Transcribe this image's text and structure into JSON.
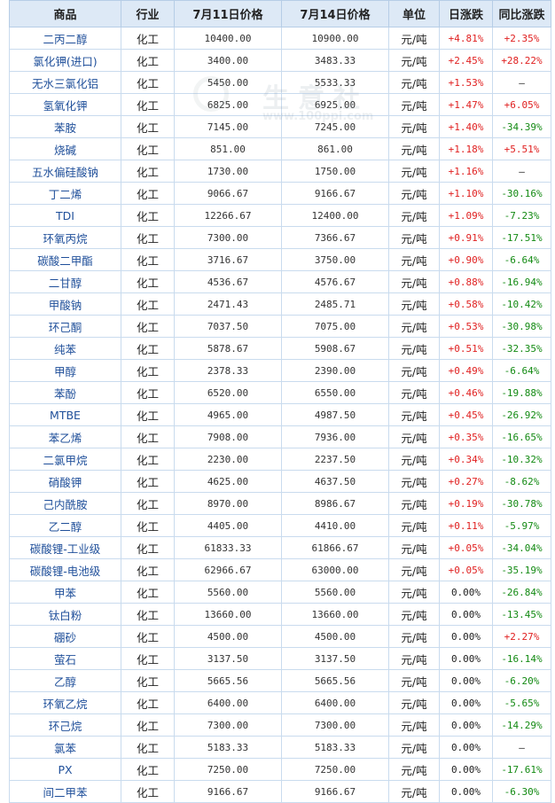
{
  "table": {
    "headers": [
      "商品",
      "行业",
      "7月11日价格",
      "7月14日价格",
      "单位",
      "日涨跌",
      "同比涨跌"
    ],
    "rows": [
      {
        "name": "二丙二醇",
        "industry": "化工",
        "p1": "10400.00",
        "p2": "10900.00",
        "unit": "元/吨",
        "daily": "+4.81%",
        "yoy": "+2.35%"
      },
      {
        "name": "氯化钾(进口)",
        "industry": "化工",
        "p1": "3400.00",
        "p2": "3483.33",
        "unit": "元/吨",
        "daily": "+2.45%",
        "yoy": "+28.22%"
      },
      {
        "name": "无水三氯化铝",
        "industry": "化工",
        "p1": "5450.00",
        "p2": "5533.33",
        "unit": "元/吨",
        "daily": "+1.53%",
        "yoy": "—"
      },
      {
        "name": "氢氧化钾",
        "industry": "化工",
        "p1": "6825.00",
        "p2": "6925.00",
        "unit": "元/吨",
        "daily": "+1.47%",
        "yoy": "+6.05%"
      },
      {
        "name": "苯胺",
        "industry": "化工",
        "p1": "7145.00",
        "p2": "7245.00",
        "unit": "元/吨",
        "daily": "+1.40%",
        "yoy": "-34.39%"
      },
      {
        "name": "烧碱",
        "industry": "化工",
        "p1": "851.00",
        "p2": "861.00",
        "unit": "元/吨",
        "daily": "+1.18%",
        "yoy": "+5.51%"
      },
      {
        "name": "五水偏硅酸钠",
        "industry": "化工",
        "p1": "1730.00",
        "p2": "1750.00",
        "unit": "元/吨",
        "daily": "+1.16%",
        "yoy": "—"
      },
      {
        "name": "丁二烯",
        "industry": "化工",
        "p1": "9066.67",
        "p2": "9166.67",
        "unit": "元/吨",
        "daily": "+1.10%",
        "yoy": "-30.16%"
      },
      {
        "name": "TDI",
        "industry": "化工",
        "p1": "12266.67",
        "p2": "12400.00",
        "unit": "元/吨",
        "daily": "+1.09%",
        "yoy": "-7.23%"
      },
      {
        "name": "环氧丙烷",
        "industry": "化工",
        "p1": "7300.00",
        "p2": "7366.67",
        "unit": "元/吨",
        "daily": "+0.91%",
        "yoy": "-17.51%"
      },
      {
        "name": "碳酸二甲酯",
        "industry": "化工",
        "p1": "3716.67",
        "p2": "3750.00",
        "unit": "元/吨",
        "daily": "+0.90%",
        "yoy": "-6.64%"
      },
      {
        "name": "二甘醇",
        "industry": "化工",
        "p1": "4536.67",
        "p2": "4576.67",
        "unit": "元/吨",
        "daily": "+0.88%",
        "yoy": "-16.94%"
      },
      {
        "name": "甲酸钠",
        "industry": "化工",
        "p1": "2471.43",
        "p2": "2485.71",
        "unit": "元/吨",
        "daily": "+0.58%",
        "yoy": "-10.42%"
      },
      {
        "name": "环己酮",
        "industry": "化工",
        "p1": "7037.50",
        "p2": "7075.00",
        "unit": "元/吨",
        "daily": "+0.53%",
        "yoy": "-30.98%"
      },
      {
        "name": "纯苯",
        "industry": "化工",
        "p1": "5878.67",
        "p2": "5908.67",
        "unit": "元/吨",
        "daily": "+0.51%",
        "yoy": "-32.35%"
      },
      {
        "name": "甲醇",
        "industry": "化工",
        "p1": "2378.33",
        "p2": "2390.00",
        "unit": "元/吨",
        "daily": "+0.49%",
        "yoy": "-6.64%"
      },
      {
        "name": "苯酚",
        "industry": "化工",
        "p1": "6520.00",
        "p2": "6550.00",
        "unit": "元/吨",
        "daily": "+0.46%",
        "yoy": "-19.88%"
      },
      {
        "name": "MTBE",
        "industry": "化工",
        "p1": "4965.00",
        "p2": "4987.50",
        "unit": "元/吨",
        "daily": "+0.45%",
        "yoy": "-26.92%"
      },
      {
        "name": "苯乙烯",
        "industry": "化工",
        "p1": "7908.00",
        "p2": "7936.00",
        "unit": "元/吨",
        "daily": "+0.35%",
        "yoy": "-16.65%"
      },
      {
        "name": "二氯甲烷",
        "industry": "化工",
        "p1": "2230.00",
        "p2": "2237.50",
        "unit": "元/吨",
        "daily": "+0.34%",
        "yoy": "-10.32%"
      },
      {
        "name": "硝酸钾",
        "industry": "化工",
        "p1": "4625.00",
        "p2": "4637.50",
        "unit": "元/吨",
        "daily": "+0.27%",
        "yoy": "-8.62%"
      },
      {
        "name": "己内酰胺",
        "industry": "化工",
        "p1": "8970.00",
        "p2": "8986.67",
        "unit": "元/吨",
        "daily": "+0.19%",
        "yoy": "-30.78%"
      },
      {
        "name": "乙二醇",
        "industry": "化工",
        "p1": "4405.00",
        "p2": "4410.00",
        "unit": "元/吨",
        "daily": "+0.11%",
        "yoy": "-5.97%"
      },
      {
        "name": "碳酸锂-工业级",
        "industry": "化工",
        "p1": "61833.33",
        "p2": "61866.67",
        "unit": "元/吨",
        "daily": "+0.05%",
        "yoy": "-34.04%"
      },
      {
        "name": "碳酸锂-电池级",
        "industry": "化工",
        "p1": "62966.67",
        "p2": "63000.00",
        "unit": "元/吨",
        "daily": "+0.05%",
        "yoy": "-35.19%"
      },
      {
        "name": "甲苯",
        "industry": "化工",
        "p1": "5560.00",
        "p2": "5560.00",
        "unit": "元/吨",
        "daily": "0.00%",
        "yoy": "-26.84%"
      },
      {
        "name": "钛白粉",
        "industry": "化工",
        "p1": "13660.00",
        "p2": "13660.00",
        "unit": "元/吨",
        "daily": "0.00%",
        "yoy": "-13.45%"
      },
      {
        "name": "硼砂",
        "industry": "化工",
        "p1": "4500.00",
        "p2": "4500.00",
        "unit": "元/吨",
        "daily": "0.00%",
        "yoy": "+2.27%"
      },
      {
        "name": "萤石",
        "industry": "化工",
        "p1": "3137.50",
        "p2": "3137.50",
        "unit": "元/吨",
        "daily": "0.00%",
        "yoy": "-16.14%"
      },
      {
        "name": "乙醇",
        "industry": "化工",
        "p1": "5665.56",
        "p2": "5665.56",
        "unit": "元/吨",
        "daily": "0.00%",
        "yoy": "-6.20%"
      },
      {
        "name": "环氧乙烷",
        "industry": "化工",
        "p1": "6400.00",
        "p2": "6400.00",
        "unit": "元/吨",
        "daily": "0.00%",
        "yoy": "-5.65%"
      },
      {
        "name": "环己烷",
        "industry": "化工",
        "p1": "7300.00",
        "p2": "7300.00",
        "unit": "元/吨",
        "daily": "0.00%",
        "yoy": "-14.29%"
      },
      {
        "name": "氯苯",
        "industry": "化工",
        "p1": "5183.33",
        "p2": "5183.33",
        "unit": "元/吨",
        "daily": "0.00%",
        "yoy": "—"
      },
      {
        "name": "PX",
        "industry": "化工",
        "p1": "7250.00",
        "p2": "7250.00",
        "unit": "元/吨",
        "daily": "0.00%",
        "yoy": "-17.61%"
      },
      {
        "name": "间二甲苯",
        "industry": "化工",
        "p1": "9166.67",
        "p2": "9166.67",
        "unit": "元/吨",
        "daily": "0.00%",
        "yoy": "-6.30%"
      }
    ]
  },
  "watermark": {
    "brand": "生意社",
    "url": "www.100ppi.com"
  },
  "colors": {
    "header_bg": "#dde9f6",
    "border": "#c9dbee",
    "name_text": "#1f4f9a",
    "rise": "#e02020",
    "fall": "#138a13"
  }
}
